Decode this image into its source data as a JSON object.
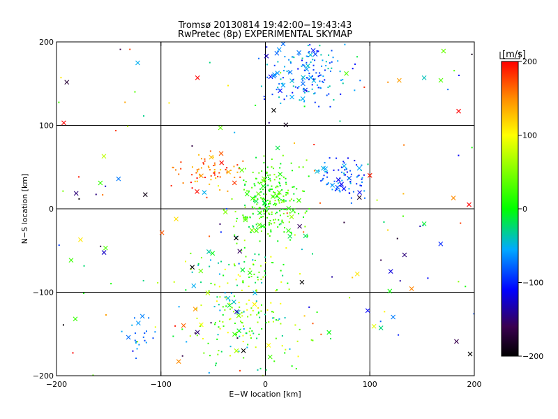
{
  "chart_data": {
    "type": "scatter",
    "title": "Tromsø 20130814 19:42:00−19:43:43",
    "subtitle": "RwPretec (8p) EXPERIMENTAL SKYMAP",
    "xlabel": "E−W location [km]",
    "ylabel": "N−S location [km]",
    "xlim": [
      -200,
      200
    ],
    "ylim": [
      -200,
      200
    ],
    "x_ticks": [
      -200,
      -100,
      0,
      100,
      200
    ],
    "y_ticks": [
      -200,
      -100,
      0,
      100,
      200
    ],
    "x_tick_labels": [
      "−200",
      "−100",
      "0",
      "100",
      "200"
    ],
    "y_tick_labels": [
      "−200",
      "−100",
      "0",
      "100",
      "200"
    ],
    "grid": true,
    "marker_types": [
      "cross",
      "dot"
    ],
    "colorbar": {
      "label": "[m/s]",
      "range": [
        -200,
        200
      ],
      "ticks": [
        200,
        100,
        0,
        -100,
        -200
      ],
      "tick_labels": [
        "200",
        "100",
        "0",
        "−100",
        "−200"
      ],
      "stops": [
        {
          "value": -200,
          "color": "#000000"
        },
        {
          "value": -160,
          "color": "#3a0050"
        },
        {
          "value": -110,
          "color": "#0000ff"
        },
        {
          "value": -55,
          "color": "#00aaff"
        },
        {
          "value": 0,
          "color": "#00ff00"
        },
        {
          "value": 100,
          "color": "#ffff00"
        },
        {
          "value": 150,
          "color": "#ff8c00"
        },
        {
          "value": 200,
          "color": "#ff0000"
        }
      ]
    },
    "clusters": [
      {
        "region": "north",
        "x_range": [
          -5,
          85
        ],
        "y_range": [
          125,
          200
        ],
        "velocity_range": [
          -110,
          -30
        ],
        "approx_points": 150
      },
      {
        "region": "center",
        "x_range": [
          -30,
          40
        ],
        "y_range": [
          -40,
          60
        ],
        "velocity_range": [
          -20,
          60
        ],
        "approx_points": 260
      },
      {
        "region": "south",
        "x_range": [
          -80,
          40
        ],
        "y_range": [
          -200,
          -40
        ],
        "velocity_range": [
          -60,
          110
        ],
        "approx_points": 240
      },
      {
        "region": "west-upper",
        "x_range": [
          -90,
          -20
        ],
        "y_range": [
          20,
          70
        ],
        "velocity_range": [
          120,
          200
        ],
        "approx_points": 70
      },
      {
        "region": "east",
        "x_range": [
          45,
          105
        ],
        "y_range": [
          10,
          60
        ],
        "velocity_range": [
          -120,
          -40
        ],
        "approx_points": 80
      },
      {
        "region": "southwest",
        "x_range": [
          -140,
          -100
        ],
        "y_range": [
          -180,
          -130
        ],
        "velocity_range": [
          -90,
          -50
        ],
        "approx_points": 20
      }
    ],
    "highlighted_points": [
      {
        "x": 1,
        "y": 183,
        "v": -130,
        "marker": "cross"
      },
      {
        "x": 8,
        "y": 118,
        "v": -200,
        "marker": "cross"
      },
      {
        "x": 185,
        "y": 117,
        "v": 200,
        "marker": "cross"
      },
      {
        "x": -193,
        "y": 103,
        "v": 200,
        "marker": "cross"
      },
      {
        "x": -158,
        "y": 31,
        "v": 20,
        "marker": "cross"
      },
      {
        "x": -115,
        "y": 17,
        "v": -190,
        "marker": "cross"
      },
      {
        "x": -177,
        "y": -37,
        "v": 110,
        "marker": "cross"
      },
      {
        "x": -153,
        "y": -47,
        "v": 30,
        "marker": "cross"
      },
      {
        "x": -182,
        "y": -132,
        "v": 20,
        "marker": "cross"
      },
      {
        "x": 152,
        "y": 157,
        "v": -40,
        "marker": "cross"
      },
      {
        "x": 168,
        "y": 154,
        "v": 30,
        "marker": "cross"
      },
      {
        "x": 152,
        "y": -18,
        "v": -10,
        "marker": "cross"
      },
      {
        "x": 120,
        "y": -75,
        "v": -120,
        "marker": "cross"
      },
      {
        "x": 98,
        "y": -122,
        "v": -110,
        "marker": "cross"
      },
      {
        "x": 196,
        "y": -174,
        "v": -200,
        "marker": "cross"
      },
      {
        "x": -83,
        "y": -183,
        "v": 150,
        "marker": "cross"
      },
      {
        "x": -21,
        "y": -170,
        "v": -200,
        "marker": "cross"
      },
      {
        "x": 35,
        "y": -88,
        "v": -200,
        "marker": "cross"
      },
      {
        "x": 88,
        "y": -78,
        "v": 110,
        "marker": "cross"
      },
      {
        "x": 100,
        "y": 40,
        "v": 190,
        "marker": "cross"
      },
      {
        "x": 180,
        "y": 13,
        "v": 150,
        "marker": "cross"
      },
      {
        "x": 195,
        "y": 5,
        "v": 200,
        "marker": "cross"
      },
      {
        "x": -65,
        "y": -148,
        "v": -150,
        "marker": "cross"
      },
      {
        "x": -70,
        "y": -70,
        "v": -200,
        "marker": "cross"
      },
      {
        "x": -28,
        "y": -35,
        "v": -200,
        "marker": "cross"
      },
      {
        "x": -65,
        "y": 157,
        "v": 200,
        "marker": "cross"
      }
    ]
  }
}
